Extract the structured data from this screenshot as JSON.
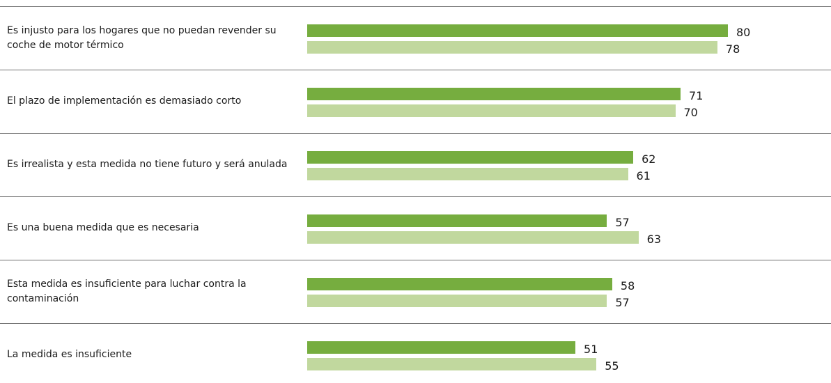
{
  "chart_data": {
    "type": "bar",
    "orientation": "horizontal",
    "categories": [
      "Es injusto para los hogares que no puedan revender su coche de motor térmico",
      "El plazo de implementación es demasiado corto",
      "Es irrealista y esta medida no tiene futuro y será anulada",
      "Es una buena medida que es necesaria",
      "Esta medida es insuficiente para luchar contra la contaminación",
      "La medida es insuficiente"
    ],
    "series": [
      {
        "color": "#76ad3f",
        "values": [
          80,
          71,
          62,
          57,
          58,
          51
        ]
      },
      {
        "color": "#c1d89e",
        "values": [
          78,
          70,
          61,
          63,
          57,
          55
        ]
      }
    ]
  }
}
